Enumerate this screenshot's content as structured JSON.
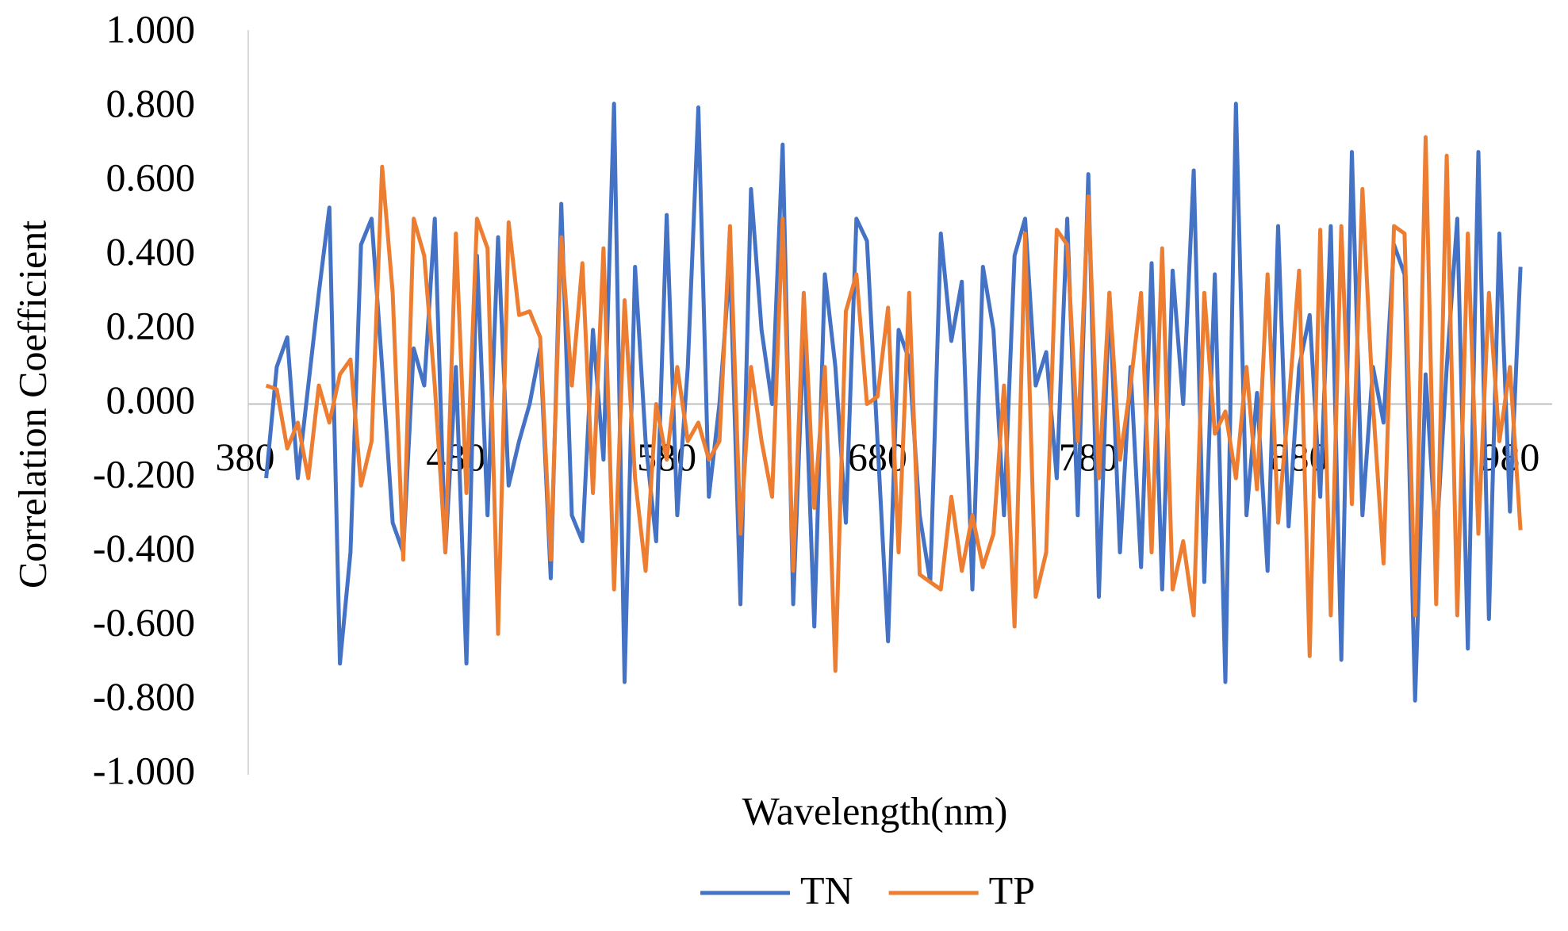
{
  "chart_data": {
    "type": "line",
    "x_label": "Wavelength(nm)",
    "y_label": "Correlation Coefficient",
    "x": [
      390,
      395,
      400,
      405,
      410,
      415,
      420,
      425,
      430,
      435,
      440,
      445,
      450,
      455,
      460,
      465,
      470,
      475,
      480,
      485,
      490,
      495,
      500,
      505,
      510,
      515,
      520,
      525,
      530,
      535,
      540,
      545,
      550,
      555,
      560,
      565,
      570,
      575,
      580,
      585,
      590,
      595,
      600,
      605,
      610,
      615,
      620,
      625,
      630,
      635,
      640,
      645,
      650,
      655,
      660,
      665,
      670,
      675,
      680,
      685,
      690,
      695,
      700,
      705,
      710,
      715,
      720,
      725,
      730,
      735,
      740,
      745,
      750,
      755,
      760,
      765,
      770,
      775,
      780,
      785,
      790,
      795,
      800,
      805,
      810,
      815,
      820,
      825,
      830,
      835,
      840,
      845,
      850,
      855,
      860,
      865,
      870,
      875,
      880,
      885,
      890,
      895,
      900,
      905,
      910,
      915,
      920,
      925,
      930,
      935,
      940,
      945,
      950,
      955,
      960,
      965,
      970,
      975,
      980,
      985
    ],
    "series": [
      {
        "name": "TN",
        "color": "#4472c4",
        "values": [
          -0.2,
          0.1,
          0.18,
          -0.2,
          0.05,
          0.3,
          0.53,
          -0.7,
          -0.4,
          0.43,
          0.5,
          0.1,
          -0.32,
          -0.4,
          0.15,
          0.05,
          0.5,
          -0.4,
          0.1,
          -0.7,
          0.4,
          -0.3,
          0.45,
          -0.22,
          -0.1,
          0.0,
          0.15,
          -0.47,
          0.54,
          -0.3,
          -0.37,
          0.2,
          -0.15,
          0.81,
          -0.75,
          0.37,
          -0.1,
          -0.37,
          0.51,
          -0.3,
          0.1,
          0.8,
          -0.25,
          0.0,
          0.38,
          -0.54,
          0.58,
          0.2,
          0.0,
          0.7,
          -0.54,
          0.2,
          -0.6,
          0.35,
          0.1,
          -0.32,
          0.5,
          0.44,
          -0.1,
          -0.64,
          0.2,
          0.12,
          -0.3,
          -0.48,
          0.46,
          0.17,
          0.33,
          -0.5,
          0.37,
          0.2,
          -0.3,
          0.4,
          0.5,
          0.05,
          0.14,
          -0.2,
          0.5,
          -0.3,
          0.62,
          -0.52,
          0.3,
          -0.4,
          0.1,
          -0.44,
          0.38,
          -0.5,
          0.36,
          0.0,
          0.63,
          -0.48,
          0.35,
          -0.75,
          0.81,
          -0.3,
          0.03,
          -0.45,
          0.48,
          -0.33,
          0.1,
          0.24,
          -0.25,
          0.48,
          -0.69,
          0.68,
          -0.3,
          0.1,
          -0.05,
          0.43,
          0.35,
          -0.8,
          0.08,
          -0.38,
          0.1,
          0.5,
          -0.66,
          0.68,
          -0.58,
          0.46,
          -0.29,
          0.37
        ]
      },
      {
        "name": "TP",
        "color": "#ed7d31",
        "values": [
          0.05,
          0.04,
          -0.12,
          -0.05,
          -0.2,
          0.05,
          -0.05,
          0.08,
          0.12,
          -0.22,
          -0.1,
          0.64,
          0.3,
          -0.42,
          0.5,
          0.4,
          0.05,
          -0.4,
          0.46,
          -0.24,
          0.5,
          0.42,
          -0.62,
          0.49,
          0.24,
          0.25,
          0.18,
          -0.42,
          0.45,
          0.05,
          0.38,
          -0.24,
          0.42,
          -0.5,
          0.28,
          -0.2,
          -0.45,
          0.0,
          -0.15,
          0.1,
          -0.1,
          -0.05,
          -0.15,
          -0.1,
          0.48,
          -0.35,
          0.1,
          -0.1,
          -0.25,
          0.5,
          -0.45,
          0.3,
          -0.28,
          0.1,
          -0.72,
          0.25,
          0.35,
          0.0,
          0.02,
          0.26,
          -0.4,
          0.3,
          -0.46,
          -0.48,
          -0.5,
          -0.25,
          -0.45,
          -0.3,
          -0.44,
          -0.35,
          0.05,
          -0.6,
          0.46,
          -0.52,
          -0.4,
          0.47,
          0.43,
          -0.1,
          0.56,
          -0.2,
          0.3,
          -0.15,
          0.05,
          0.3,
          -0.4,
          0.42,
          -0.5,
          -0.37,
          -0.57,
          0.3,
          -0.08,
          -0.02,
          -0.2,
          0.1,
          -0.23,
          0.35,
          -0.32,
          0.0,
          0.36,
          -0.68,
          0.47,
          -0.57,
          0.48,
          -0.27,
          0.58,
          0.0,
          -0.43,
          0.48,
          0.46,
          -0.57,
          0.72,
          -0.54,
          0.67,
          -0.57,
          0.46,
          -0.35,
          0.3,
          -0.1,
          0.1,
          -0.34
        ]
      }
    ],
    "xlim": [
      380,
      1000
    ],
    "xticks": [
      380,
      480,
      580,
      680,
      780,
      880,
      980
    ],
    "ylim": [
      -1,
      1
    ],
    "yticks": [
      {
        "value": -1,
        "label": "-1.000"
      },
      {
        "value": -0.8,
        "label": "-0.800"
      },
      {
        "value": -0.6,
        "label": "-0.600"
      },
      {
        "value": -0.4,
        "label": "-0.400"
      },
      {
        "value": -0.2,
        "label": "-0.200"
      },
      {
        "value": 0,
        "label": "0.000"
      },
      {
        "value": 0.2,
        "label": "0.200"
      },
      {
        "value": 0.4,
        "label": "0.400"
      },
      {
        "value": 0.6,
        "label": "0.600"
      },
      {
        "value": 0.8,
        "label": "0.800"
      },
      {
        "value": 1,
        "label": "1.000"
      }
    ],
    "grid": false,
    "legend": "bottom"
  }
}
